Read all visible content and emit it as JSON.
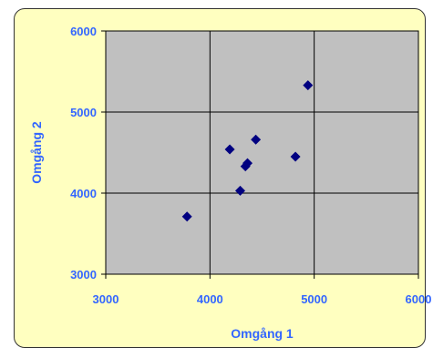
{
  "chart_data": {
    "type": "scatter",
    "xlabel": "Omgång 1",
    "ylabel": "Omgång 2",
    "xlim": [
      3000,
      6000
    ],
    "ylim": [
      3000,
      6000
    ],
    "x_ticks": [
      "3000",
      "4000",
      "5000",
      "6000"
    ],
    "y_ticks": [
      "3000",
      "4000",
      "5000",
      "6000"
    ],
    "grid": true,
    "points": [
      {
        "x": 3780,
        "y": 3710
      },
      {
        "x": 4190,
        "y": 4540
      },
      {
        "x": 4290,
        "y": 4030
      },
      {
        "x": 4340,
        "y": 4330
      },
      {
        "x": 4360,
        "y": 4370
      },
      {
        "x": 4440,
        "y": 4660
      },
      {
        "x": 4820,
        "y": 4450
      },
      {
        "x": 4940,
        "y": 5330
      }
    ]
  },
  "colors": {
    "chart_background": "#ffffc0",
    "plot_background": "#c0c0c0",
    "grid": "#000000",
    "marker": "#000080",
    "text": "#3366ff"
  }
}
